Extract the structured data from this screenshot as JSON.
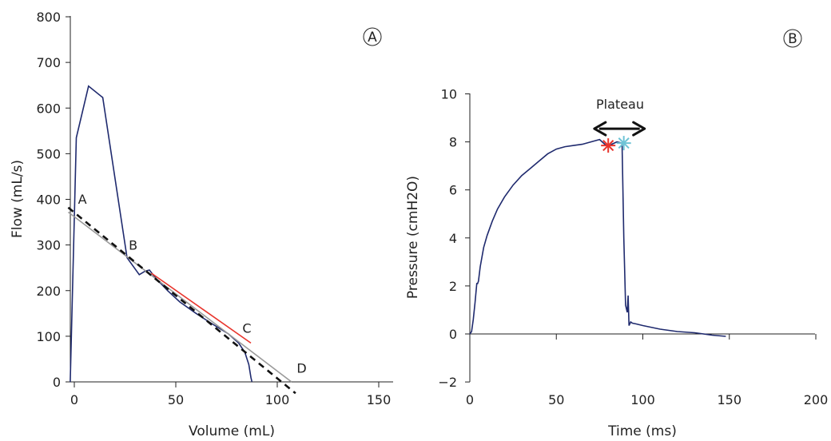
{
  "chart_data": [
    {
      "panel": "A",
      "type": "line",
      "xlabel": "Volume (mL)",
      "ylabel": "Flow (mL/s)",
      "xlim": [
        -3,
        160
      ],
      "ylim": [
        0,
        800
      ],
      "xticks": [
        0,
        50,
        100,
        150
      ],
      "yticks": [
        0,
        100,
        200,
        300,
        400,
        500,
        600,
        700,
        800
      ],
      "series": [
        {
          "color": "#1f2a6e",
          "x": [
            -2,
            1,
            7,
            14,
            26,
            32,
            35,
            37,
            40,
            46,
            52,
            60,
            68,
            76,
            81,
            84,
            86,
            87,
            87.5
          ],
          "y": [
            0,
            535,
            648,
            623,
            272,
            235,
            243,
            245,
            228,
            200,
            175,
            150,
            127,
            105,
            85,
            65,
            38,
            10,
            0
          ]
        },
        {
          "color": "#e8342c",
          "x": [
            38,
            87
          ],
          "y": [
            238,
            85
          ]
        },
        {
          "color": "#9a9a9a",
          "x": [
            -3,
            107
          ],
          "y": [
            372,
            0
          ]
        },
        {
          "color": "#111111",
          "dashed": true,
          "x": [
            -3,
            109
          ],
          "y": [
            382,
            -25
          ]
        }
      ],
      "annotations": [
        {
          "text": "A",
          "x": 4,
          "y": 390
        },
        {
          "text": "B",
          "x": 29,
          "y": 290
        },
        {
          "text": "C",
          "x": 85,
          "y": 108
        },
        {
          "text": "D",
          "x": 112,
          "y": 20
        }
      ]
    },
    {
      "panel": "B",
      "type": "line",
      "title": "Plateau",
      "xlabel": "Time (ms)",
      "ylabel": "Pressure (cmH2O)",
      "xlim": [
        0,
        200
      ],
      "ylim": [
        -2,
        10
      ],
      "xticks": [
        0,
        50,
        100,
        150,
        200
      ],
      "yticks": [
        -2,
        0,
        2,
        4,
        6,
        8,
        10
      ],
      "series": [
        {
          "color": "#1f2a6e",
          "x": [
            0,
            1,
            2,
            3,
            4,
            4.5,
            5,
            6,
            8,
            10,
            13,
            16,
            20,
            25,
            30,
            35,
            40,
            45,
            50,
            55,
            60,
            65,
            70,
            75,
            78,
            80,
            82,
            85,
            88,
            89,
            90,
            91,
            91.5,
            92,
            93,
            94,
            96,
            100,
            110,
            120,
            130,
            140,
            148
          ],
          "y": [
            0,
            0.1,
            0.6,
            1.3,
            2.1,
            2.1,
            2.2,
            2.8,
            3.6,
            4.1,
            4.7,
            5.2,
            5.7,
            6.2,
            6.6,
            6.9,
            7.2,
            7.5,
            7.7,
            7.8,
            7.85,
            7.9,
            8.0,
            8.1,
            7.9,
            7.8,
            7.9,
            8.0,
            7.95,
            4.0,
            1.2,
            0.9,
            1.6,
            0.35,
            0.5,
            0.45,
            0.42,
            0.35,
            0.2,
            0.1,
            0.05,
            -0.05,
            -0.1
          ]
        }
      ],
      "markers": [
        {
          "color": "#e8342c",
          "x": 80,
          "y": 7.85
        },
        {
          "color": "#6ec4d6",
          "x": 89,
          "y": 7.95
        }
      ],
      "plateau_arrow": {
        "x": [
          72,
          101
        ],
        "y": 8.55
      }
    }
  ]
}
